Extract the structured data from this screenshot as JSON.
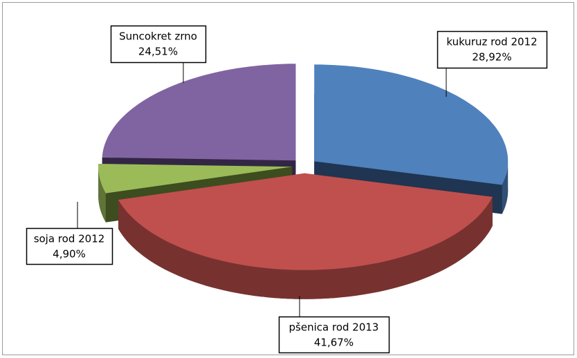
{
  "chart_data": {
    "type": "pie",
    "categories": [
      "kukuruz rod 2012",
      "pšenica rod 2013",
      "soja rod 2012",
      "Suncokret zrno"
    ],
    "values": [
      28.92,
      41.67,
      4.9,
      24.51
    ],
    "value_labels": [
      "28,92%",
      "41,67%",
      "4,90%",
      "24,51%"
    ],
    "colors": [
      "#4f81bd",
      "#c0504d",
      "#9bbb59",
      "#8064a2"
    ],
    "side_colors": [
      "#1f3552",
      "#5e2422",
      "#3d4d1f",
      "#332645"
    ]
  }
}
